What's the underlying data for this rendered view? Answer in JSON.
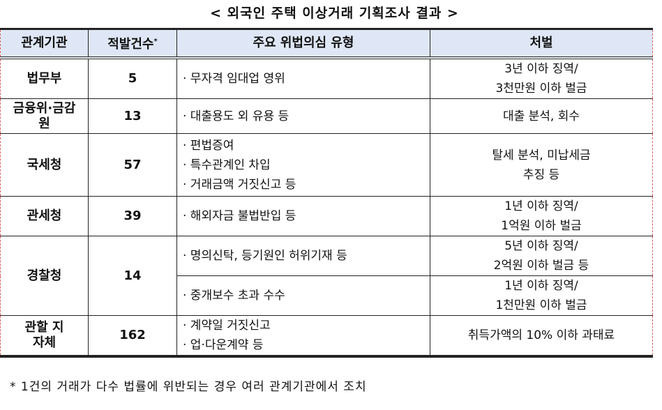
{
  "title": "< 외국인 주택 이상거래 기획조사 결과 >",
  "headers": {
    "agency": "관계기관",
    "count": "적발건수",
    "count_mark": "*",
    "type": "주요 위법의심 유형",
    "penalty": "처벌"
  },
  "rows": [
    {
      "agency": "법무부",
      "count": "5",
      "types": [
        "· 무자격 임대업 영위"
      ],
      "penalty": [
        "3년 이하 징역/",
        "3천만원 이하 벌금"
      ]
    },
    {
      "agency": "금융위·금감원",
      "count": "13",
      "types": [
        "· 대출용도 외 유용 등"
      ],
      "penalty": [
        "대출 분석, 회수"
      ]
    },
    {
      "agency": "국세청",
      "count": "57",
      "types": [
        "· 편법증여",
        "· 특수관계인 차입",
        "· 거래금액 거짓신고 등"
      ],
      "penalty": [
        "탈세 분석, 미납세금",
        "추징 등"
      ]
    },
    {
      "agency": "관세청",
      "count": "39",
      "types": [
        "· 해외자금 불법반입 등"
      ],
      "penalty": [
        "1년 이하 징역/",
        "1억원 이하 벌금"
      ]
    },
    {
      "agency": "경찰청",
      "count": "14",
      "sub": [
        {
          "types": [
            "· 명의신탁, 등기원인 허위기재 등"
          ],
          "penalty": [
            "5년 이하 징역/",
            "2억원 이하 벌금 등"
          ]
        },
        {
          "types": [
            "· 중개보수 초과 수수"
          ],
          "penalty": [
            "1년 이하 징역/",
            "1천만원 이하 벌금"
          ]
        }
      ]
    },
    {
      "agency": "관할 지자체",
      "count": "162",
      "types": [
        "· 계약일 거짓신고",
        "· 업·다운계약 등"
      ],
      "penalty": [
        "취득가액의 10% 이하 과태료"
      ]
    }
  ],
  "footnote": "* 1건의 거래가 다수 법률에 위반되는 경우 여러 관계기관에서 조치"
}
